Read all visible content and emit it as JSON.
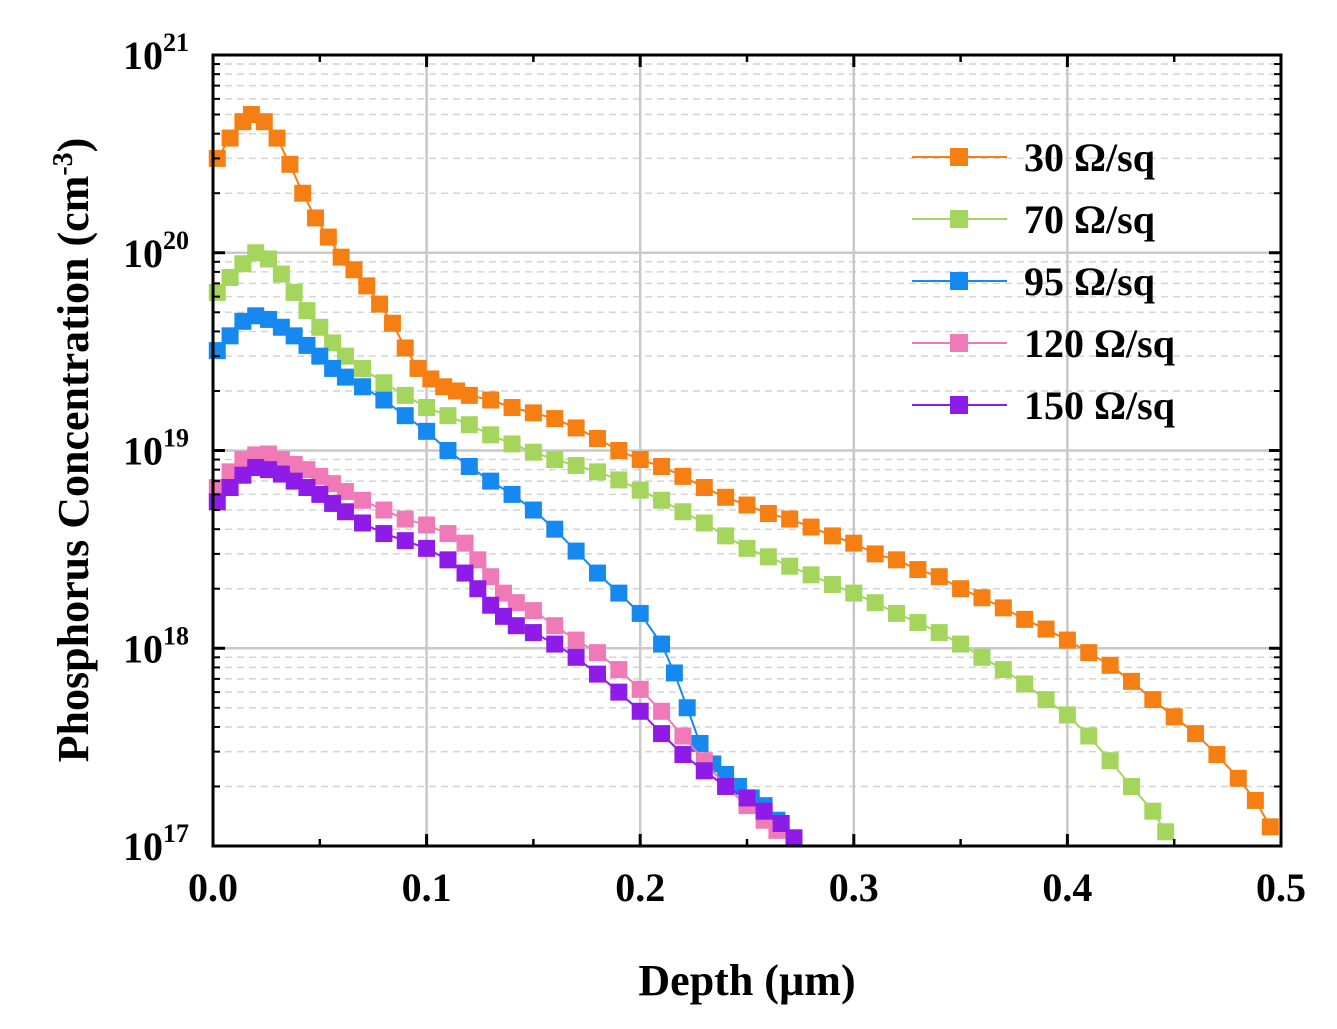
{
  "chart_data": {
    "type": "scatter",
    "xlabel": "Depth (µm)",
    "ylabel": "Phosphorus Concentration (cm",
    "ylabel_sup": "-3",
    "ylabel_close": ")",
    "xlim": [
      0,
      0.5
    ],
    "ylim": [
      1e+17,
      1e+21
    ],
    "yscale": "log",
    "grid": true,
    "legend_position": "top-right",
    "x_ticks": [
      "0.0",
      "0.1",
      "0.2",
      "0.3",
      "0.4",
      "0.5"
    ],
    "y_ticks": [
      {
        "base": "10",
        "exp": "17"
      },
      {
        "base": "10",
        "exp": "18"
      },
      {
        "base": "10",
        "exp": "19"
      },
      {
        "base": "10",
        "exp": "20"
      },
      {
        "base": "10",
        "exp": "21"
      }
    ],
    "series": [
      {
        "name": "30 Ω/sq",
        "color": "#f57f12",
        "points": [
          [
            0.002,
            3e+20
          ],
          [
            0.008,
            3.8e+20
          ],
          [
            0.014,
            4.6e+20
          ],
          [
            0.018,
            5e+20
          ],
          [
            0.024,
            4.6e+20
          ],
          [
            0.03,
            3.8e+20
          ],
          [
            0.036,
            2.8e+20
          ],
          [
            0.042,
            2e+20
          ],
          [
            0.048,
            1.5e+20
          ],
          [
            0.054,
            1.2e+20
          ],
          [
            0.06,
            9.5e+19
          ],
          [
            0.066,
            8.2e+19
          ],
          [
            0.072,
            6.8e+19
          ],
          [
            0.078,
            5.5e+19
          ],
          [
            0.084,
            4.4e+19
          ],
          [
            0.09,
            3.3e+19
          ],
          [
            0.096,
            2.6e+19
          ],
          [
            0.102,
            2.3e+19
          ],
          [
            0.108,
            2.1e+19
          ],
          [
            0.114,
            2e+19
          ],
          [
            0.12,
            1.9e+19
          ],
          [
            0.13,
            1.8e+19
          ],
          [
            0.14,
            1.65e+19
          ],
          [
            0.15,
            1.55e+19
          ],
          [
            0.16,
            1.45e+19
          ],
          [
            0.17,
            1.3e+19
          ],
          [
            0.18,
            1.15e+19
          ],
          [
            0.19,
            1e+19
          ],
          [
            0.2,
            9e+18
          ],
          [
            0.21,
            8.3e+18
          ],
          [
            0.22,
            7.4e+18
          ],
          [
            0.23,
            6.5e+18
          ],
          [
            0.24,
            5.8e+18
          ],
          [
            0.25,
            5.3e+18
          ],
          [
            0.26,
            4.8e+18
          ],
          [
            0.27,
            4.5e+18
          ],
          [
            0.28,
            4.1e+18
          ],
          [
            0.29,
            3.7e+18
          ],
          [
            0.3,
            3.4e+18
          ],
          [
            0.31,
            3e+18
          ],
          [
            0.32,
            2.8e+18
          ],
          [
            0.33,
            2.5e+18
          ],
          [
            0.34,
            2.3e+18
          ],
          [
            0.35,
            2e+18
          ],
          [
            0.36,
            1.8e+18
          ],
          [
            0.37,
            1.6e+18
          ],
          [
            0.38,
            1.4e+18
          ],
          [
            0.39,
            1.25e+18
          ],
          [
            0.4,
            1.1e+18
          ],
          [
            0.41,
            9.5e+17
          ],
          [
            0.42,
            8.2e+17
          ],
          [
            0.43,
            6.8e+17
          ],
          [
            0.44,
            5.5e+17
          ],
          [
            0.45,
            4.5e+17
          ],
          [
            0.46,
            3.7e+17
          ],
          [
            0.47,
            2.9e+17
          ],
          [
            0.48,
            2.2e+17
          ],
          [
            0.488,
            1.7e+17
          ],
          [
            0.495,
            1.25e+17
          ]
        ]
      },
      {
        "name": "70 Ω/sq",
        "color": "#a4d65e",
        "points": [
          [
            0.002,
            6.3e+19
          ],
          [
            0.008,
            7.5e+19
          ],
          [
            0.014,
            8.8e+19
          ],
          [
            0.02,
            1e+20
          ],
          [
            0.026,
            9.3e+19
          ],
          [
            0.032,
            7.8e+19
          ],
          [
            0.038,
            6.3e+19
          ],
          [
            0.044,
            5.1e+19
          ],
          [
            0.05,
            4.2e+19
          ],
          [
            0.056,
            3.5e+19
          ],
          [
            0.062,
            3e+19
          ],
          [
            0.07,
            2.6e+19
          ],
          [
            0.08,
            2.2e+19
          ],
          [
            0.09,
            1.9e+19
          ],
          [
            0.1,
            1.65e+19
          ],
          [
            0.11,
            1.5e+19
          ],
          [
            0.12,
            1.35e+19
          ],
          [
            0.13,
            1.2e+19
          ],
          [
            0.14,
            1.08e+19
          ],
          [
            0.15,
            9.8e+18
          ],
          [
            0.16,
            9e+18
          ],
          [
            0.17,
            8.4e+18
          ],
          [
            0.18,
            7.8e+18
          ],
          [
            0.19,
            7.1e+18
          ],
          [
            0.2,
            6.3e+18
          ],
          [
            0.21,
            5.6e+18
          ],
          [
            0.22,
            4.9e+18
          ],
          [
            0.23,
            4.3e+18
          ],
          [
            0.24,
            3.7e+18
          ],
          [
            0.25,
            3.2e+18
          ],
          [
            0.26,
            2.9e+18
          ],
          [
            0.27,
            2.6e+18
          ],
          [
            0.28,
            2.35e+18
          ],
          [
            0.29,
            2.1e+18
          ],
          [
            0.3,
            1.9e+18
          ],
          [
            0.31,
            1.7e+18
          ],
          [
            0.32,
            1.5e+18
          ],
          [
            0.33,
            1.35e+18
          ],
          [
            0.34,
            1.2e+18
          ],
          [
            0.35,
            1.05e+18
          ],
          [
            0.36,
            9e+17
          ],
          [
            0.37,
            7.8e+17
          ],
          [
            0.38,
            6.6e+17
          ],
          [
            0.39,
            5.5e+17
          ],
          [
            0.4,
            4.6e+17
          ],
          [
            0.41,
            3.6e+17
          ],
          [
            0.42,
            2.7e+17
          ],
          [
            0.43,
            2e+17
          ],
          [
            0.44,
            1.5e+17
          ],
          [
            0.446,
            1.18e+17
          ]
        ]
      },
      {
        "name": "95 Ω/sq",
        "color": "#1689f0",
        "points": [
          [
            0.002,
            3.2e+19
          ],
          [
            0.008,
            3.8e+19
          ],
          [
            0.014,
            4.5e+19
          ],
          [
            0.02,
            4.8e+19
          ],
          [
            0.026,
            4.6e+19
          ],
          [
            0.032,
            4.2e+19
          ],
          [
            0.038,
            3.8e+19
          ],
          [
            0.044,
            3.4e+19
          ],
          [
            0.05,
            3e+19
          ],
          [
            0.056,
            2.6e+19
          ],
          [
            0.062,
            2.35e+19
          ],
          [
            0.07,
            2.1e+19
          ],
          [
            0.08,
            1.8e+19
          ],
          [
            0.09,
            1.5e+19
          ],
          [
            0.1,
            1.25e+19
          ],
          [
            0.11,
            1e+19
          ],
          [
            0.12,
            8.3e+18
          ],
          [
            0.13,
            7e+18
          ],
          [
            0.14,
            6e+18
          ],
          [
            0.15,
            5e+18
          ],
          [
            0.16,
            4e+18
          ],
          [
            0.17,
            3.1e+18
          ],
          [
            0.18,
            2.4e+18
          ],
          [
            0.19,
            1.9e+18
          ],
          [
            0.2,
            1.5e+18
          ],
          [
            0.21,
            1.05e+18
          ],
          [
            0.216,
            7.5e+17
          ],
          [
            0.222,
            5e+17
          ],
          [
            0.228,
            3.3e+17
          ],
          [
            0.234,
            2.6e+17
          ],
          [
            0.24,
            2.3e+17
          ],
          [
            0.246,
            2e+17
          ],
          [
            0.252,
            1.75e+17
          ],
          [
            0.258,
            1.6e+17
          ],
          [
            0.264,
            1.35e+17
          ]
        ]
      },
      {
        "name": "120 Ω/sq",
        "color": "#f07ab8",
        "points": [
          [
            0.002,
            6.5e+18
          ],
          [
            0.008,
            7.8e+18
          ],
          [
            0.014,
            9e+18
          ],
          [
            0.02,
            9.5e+18
          ],
          [
            0.026,
            9.6e+18
          ],
          [
            0.032,
            9e+18
          ],
          [
            0.038,
            8.5e+18
          ],
          [
            0.044,
            8e+18
          ],
          [
            0.05,
            7.4e+18
          ],
          [
            0.056,
            6.8e+18
          ],
          [
            0.062,
            6.2e+18
          ],
          [
            0.07,
            5.6e+18
          ],
          [
            0.08,
            5e+18
          ],
          [
            0.09,
            4.5e+18
          ],
          [
            0.1,
            4.2e+18
          ],
          [
            0.11,
            3.8e+18
          ],
          [
            0.118,
            3.4e+18
          ],
          [
            0.124,
            2.8e+18
          ],
          [
            0.13,
            2.3e+18
          ],
          [
            0.136,
            1.9e+18
          ],
          [
            0.142,
            1.7e+18
          ],
          [
            0.15,
            1.55e+18
          ],
          [
            0.16,
            1.3e+18
          ],
          [
            0.17,
            1.1e+18
          ],
          [
            0.18,
            9.5e+17
          ],
          [
            0.19,
            7.8e+17
          ],
          [
            0.2,
            6.2e+17
          ],
          [
            0.21,
            4.8e+17
          ],
          [
            0.22,
            3.6e+17
          ],
          [
            0.23,
            2.7e+17
          ],
          [
            0.24,
            2e+17
          ],
          [
            0.25,
            1.6e+17
          ],
          [
            0.258,
            1.35e+17
          ],
          [
            0.264,
            1.2e+17
          ]
        ]
      },
      {
        "name": "150 Ω/sq",
        "color": "#8e1be8",
        "points": [
          [
            0.002,
            5.5e+18
          ],
          [
            0.008,
            6.5e+18
          ],
          [
            0.014,
            7.5e+18
          ],
          [
            0.02,
            8.2e+18
          ],
          [
            0.026,
            8e+18
          ],
          [
            0.032,
            7.6e+18
          ],
          [
            0.038,
            7e+18
          ],
          [
            0.044,
            6.5e+18
          ],
          [
            0.05,
            6e+18
          ],
          [
            0.056,
            5.4e+18
          ],
          [
            0.062,
            4.9e+18
          ],
          [
            0.07,
            4.3e+18
          ],
          [
            0.08,
            3.8e+18
          ],
          [
            0.09,
            3.5e+18
          ],
          [
            0.1,
            3.2e+18
          ],
          [
            0.11,
            2.8e+18
          ],
          [
            0.118,
            2.4e+18
          ],
          [
            0.124,
            2e+18
          ],
          [
            0.13,
            1.65e+18
          ],
          [
            0.136,
            1.45e+18
          ],
          [
            0.142,
            1.3e+18
          ],
          [
            0.15,
            1.2e+18
          ],
          [
            0.16,
            1.05e+18
          ],
          [
            0.17,
            9e+17
          ],
          [
            0.18,
            7.4e+17
          ],
          [
            0.19,
            6e+17
          ],
          [
            0.2,
            4.8e+17
          ],
          [
            0.21,
            3.7e+17
          ],
          [
            0.22,
            2.9e+17
          ],
          [
            0.23,
            2.4e+17
          ],
          [
            0.24,
            2e+17
          ],
          [
            0.25,
            1.75e+17
          ],
          [
            0.258,
            1.5e+17
          ],
          [
            0.266,
            1.3e+17
          ],
          [
            0.272,
            1.1e+17
          ]
        ]
      }
    ]
  }
}
